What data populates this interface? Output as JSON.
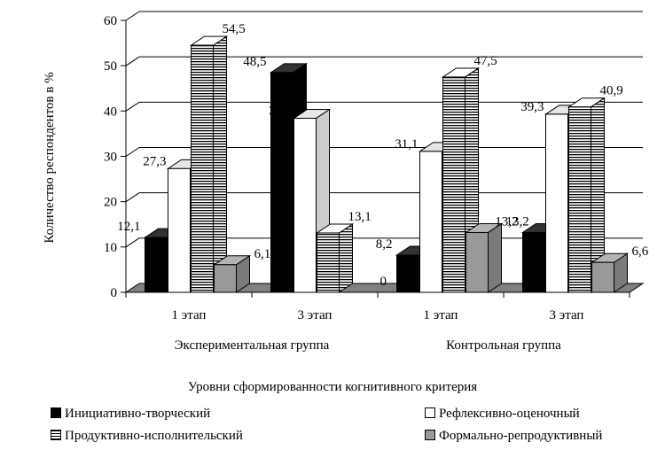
{
  "chart_data": {
    "type": "bar",
    "ylabel": "Количество респондентов в %",
    "xlabel": "Уровни сформированности когнитивного критерия",
    "ylim": [
      0,
      60
    ],
    "yticks": [
      0,
      10,
      20,
      30,
      40,
      50,
      60
    ],
    "grid": true,
    "legend_position": "bottom",
    "groups": [
      "Экспериментальная группа",
      "Контрольная группа"
    ],
    "categories": [
      "1 этап",
      "3 этап",
      "1 этап",
      "3 этап"
    ],
    "category_groups": [
      0,
      0,
      1,
      1
    ],
    "series": [
      {
        "name": "Инициативно-творческий",
        "style": "black",
        "values": [
          12.1,
          48.5,
          8.2,
          13.2
        ],
        "labels": [
          "12,1",
          "48,5",
          "8,2",
          "13,2"
        ]
      },
      {
        "name": "Рефлексивно-оценочный",
        "style": "white",
        "values": [
          27.3,
          38.4,
          31.1,
          39.3
        ],
        "labels": [
          "27,3",
          "38,4",
          "31,1",
          "39,3"
        ]
      },
      {
        "name": "Продуктивно-исполнительский",
        "style": "striped",
        "values": [
          54.5,
          13.1,
          47.5,
          40.9
        ],
        "labels": [
          "54,5",
          "13,1",
          "47,5",
          "40,9"
        ]
      },
      {
        "name": "Формально-репродуктивный",
        "style": "gray",
        "values": [
          6.1,
          0,
          13.2,
          6.6
        ],
        "labels": [
          "6,1",
          "0",
          "13,2",
          "6,6"
        ]
      }
    ],
    "colors": {
      "black": "#000000",
      "white": "#ffffff",
      "gray": "#999999",
      "floor": "#808080"
    }
  }
}
